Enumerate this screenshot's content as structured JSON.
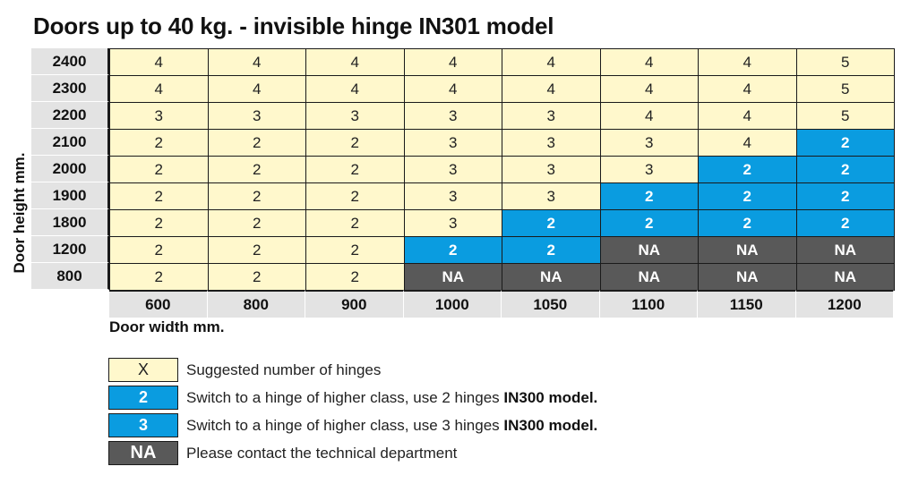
{
  "chart_data": {
    "type": "table",
    "title": "Doors up to 40 kg. - invisible hinge IN301 model",
    "xlabel": "Door width mm.",
    "ylabel": "Door height mm.",
    "columns": [
      "600",
      "800",
      "900",
      "1000",
      "1050",
      "1100",
      "1150",
      "1200"
    ],
    "rows": [
      {
        "height": "2400",
        "cells": [
          {
            "v": "4",
            "t": "num"
          },
          {
            "v": "4",
            "t": "num"
          },
          {
            "v": "4",
            "t": "num"
          },
          {
            "v": "4",
            "t": "num"
          },
          {
            "v": "4",
            "t": "num"
          },
          {
            "v": "4",
            "t": "num"
          },
          {
            "v": "4",
            "t": "num"
          },
          {
            "v": "5",
            "t": "num"
          }
        ]
      },
      {
        "height": "2300",
        "cells": [
          {
            "v": "4",
            "t": "num"
          },
          {
            "v": "4",
            "t": "num"
          },
          {
            "v": "4",
            "t": "num"
          },
          {
            "v": "4",
            "t": "num"
          },
          {
            "v": "4",
            "t": "num"
          },
          {
            "v": "4",
            "t": "num"
          },
          {
            "v": "4",
            "t": "num"
          },
          {
            "v": "5",
            "t": "num"
          }
        ]
      },
      {
        "height": "2200",
        "cells": [
          {
            "v": "3",
            "t": "num"
          },
          {
            "v": "3",
            "t": "num"
          },
          {
            "v": "3",
            "t": "num"
          },
          {
            "v": "3",
            "t": "num"
          },
          {
            "v": "3",
            "t": "num"
          },
          {
            "v": "4",
            "t": "num"
          },
          {
            "v": "4",
            "t": "num"
          },
          {
            "v": "5",
            "t": "num"
          }
        ]
      },
      {
        "height": "2100",
        "cells": [
          {
            "v": "2",
            "t": "num"
          },
          {
            "v": "2",
            "t": "num"
          },
          {
            "v": "2",
            "t": "num"
          },
          {
            "v": "3",
            "t": "num"
          },
          {
            "v": "3",
            "t": "num"
          },
          {
            "v": "3",
            "t": "num"
          },
          {
            "v": "4",
            "t": "num"
          },
          {
            "v": "2",
            "t": "blue"
          }
        ]
      },
      {
        "height": "2000",
        "cells": [
          {
            "v": "2",
            "t": "num"
          },
          {
            "v": "2",
            "t": "num"
          },
          {
            "v": "2",
            "t": "num"
          },
          {
            "v": "3",
            "t": "num"
          },
          {
            "v": "3",
            "t": "num"
          },
          {
            "v": "3",
            "t": "num"
          },
          {
            "v": "2",
            "t": "blue"
          },
          {
            "v": "2",
            "t": "blue"
          }
        ]
      },
      {
        "height": "1900",
        "cells": [
          {
            "v": "2",
            "t": "num"
          },
          {
            "v": "2",
            "t": "num"
          },
          {
            "v": "2",
            "t": "num"
          },
          {
            "v": "3",
            "t": "num"
          },
          {
            "v": "3",
            "t": "num"
          },
          {
            "v": "2",
            "t": "blue"
          },
          {
            "v": "2",
            "t": "blue"
          },
          {
            "v": "2",
            "t": "blue"
          }
        ]
      },
      {
        "height": "1800",
        "cells": [
          {
            "v": "2",
            "t": "num"
          },
          {
            "v": "2",
            "t": "num"
          },
          {
            "v": "2",
            "t": "num"
          },
          {
            "v": "3",
            "t": "num"
          },
          {
            "v": "2",
            "t": "blue"
          },
          {
            "v": "2",
            "t": "blue"
          },
          {
            "v": "2",
            "t": "blue"
          },
          {
            "v": "2",
            "t": "blue"
          }
        ]
      },
      {
        "height": "1200",
        "cells": [
          {
            "v": "2",
            "t": "num"
          },
          {
            "v": "2",
            "t": "num"
          },
          {
            "v": "2",
            "t": "num"
          },
          {
            "v": "2",
            "t": "blue"
          },
          {
            "v": "2",
            "t": "blue"
          },
          {
            "v": "NA",
            "t": "na"
          },
          {
            "v": "NA",
            "t": "na"
          },
          {
            "v": "NA",
            "t": "na"
          }
        ]
      },
      {
        "height": "800",
        "cells": [
          {
            "v": "2",
            "t": "num"
          },
          {
            "v": "2",
            "t": "num"
          },
          {
            "v": "2",
            "t": "num"
          },
          {
            "v": "NA",
            "t": "na"
          },
          {
            "v": "NA",
            "t": "na"
          },
          {
            "v": "NA",
            "t": "na"
          },
          {
            "v": "NA",
            "t": "na"
          },
          {
            "v": "NA",
            "t": "na"
          }
        ]
      }
    ],
    "colors": {
      "num": "#fff8cc",
      "blue": "#0a9ce0",
      "na": "#595959",
      "header": "#e3e3e3"
    }
  },
  "legend": [
    {
      "swatch": "X",
      "t": "num",
      "text": "Suggested number of hinges",
      "bold": ""
    },
    {
      "swatch": "2",
      "t": "blue",
      "text": "Switch to a hinge of  higher class, use 2 hinges ",
      "bold": "IN300 model."
    },
    {
      "swatch": "3",
      "t": "blue",
      "text": "Switch to a hinge of  higher class, use 3 hinges ",
      "bold": "IN300 model."
    },
    {
      "swatch": "NA",
      "t": "na",
      "text": "Please contact the technical department",
      "bold": ""
    }
  ]
}
